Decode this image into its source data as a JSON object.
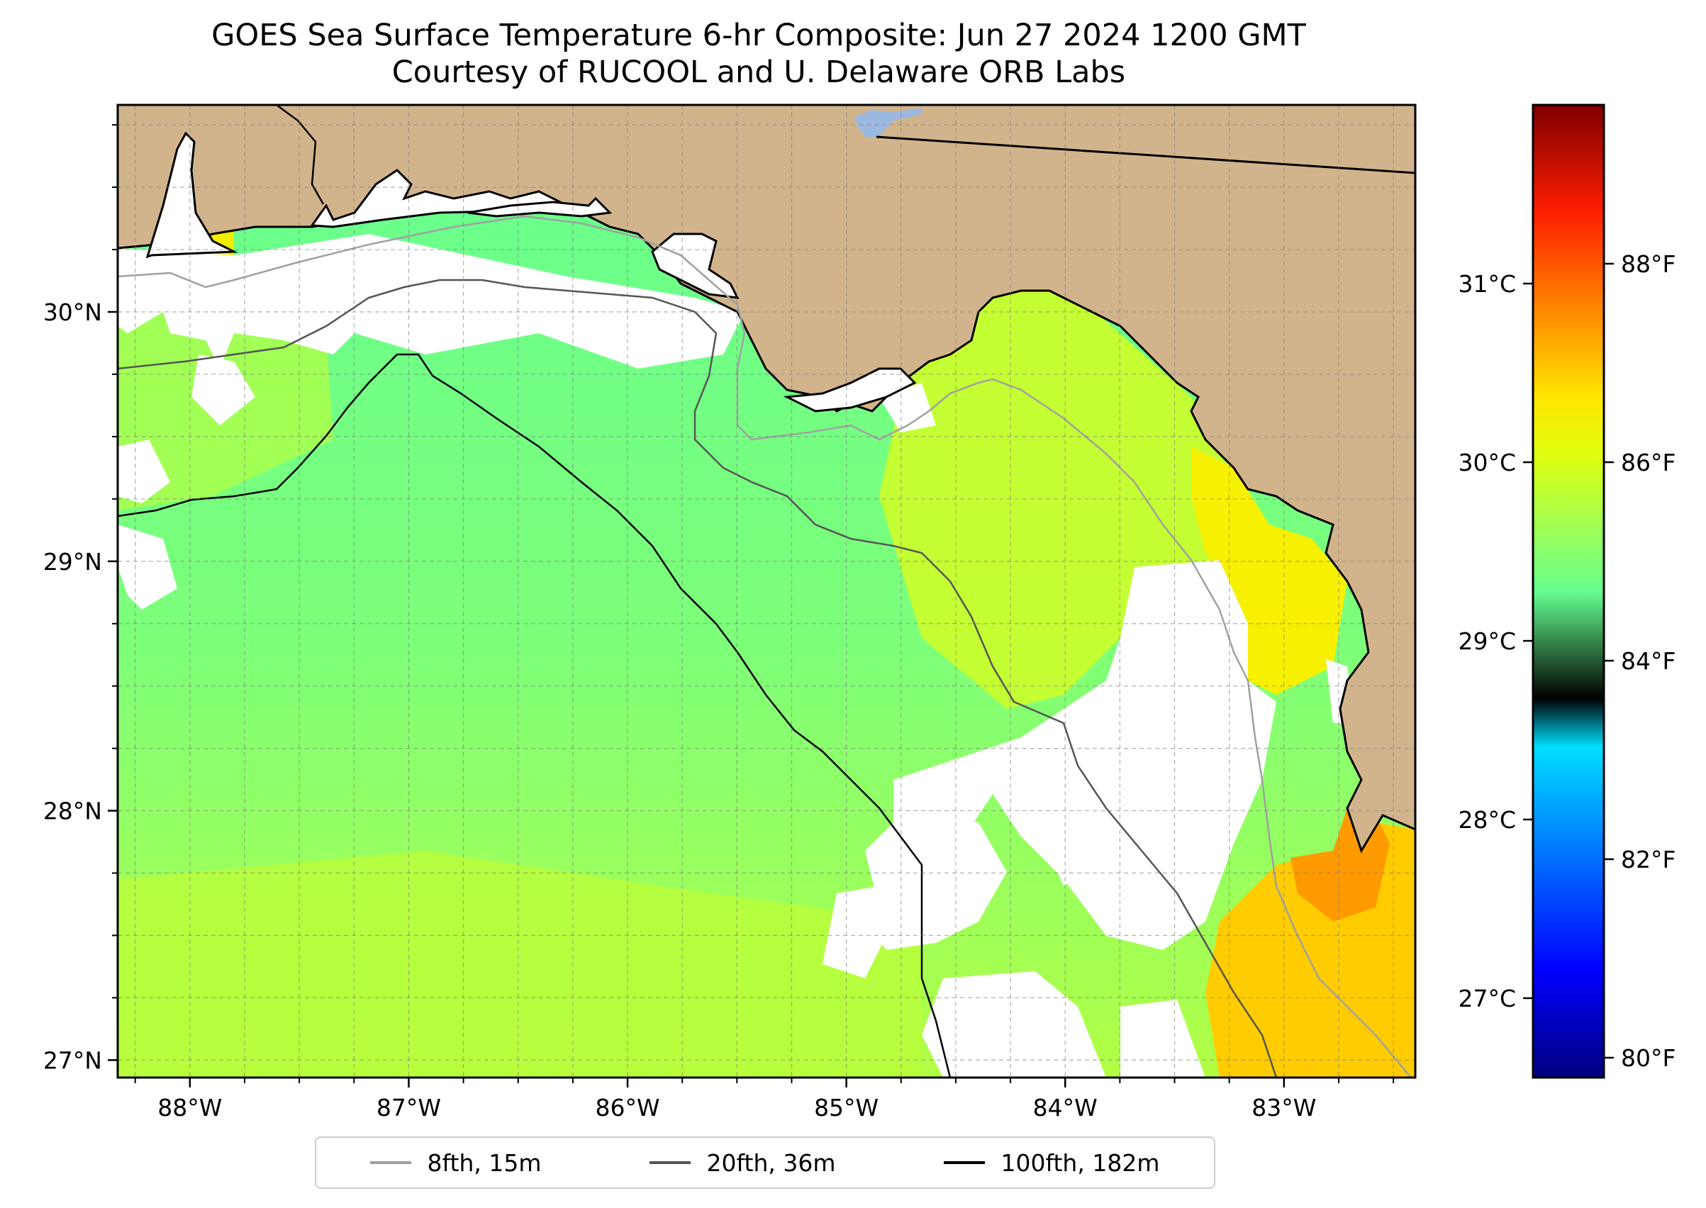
{
  "title": {
    "line1": "GOES Sea Surface Temperature 6-hr Composite: Jun 27 2024 1200 GMT",
    "line2": "Courtesy of RUCOOL and U. Delaware ORB Labs"
  },
  "map": {
    "extent": {
      "lon_min": -88.33,
      "lon_max": -82.4,
      "lat_min": 26.93,
      "lat_max": 30.83
    },
    "lon_ticks": [
      {
        "value": -88,
        "label": "88°W"
      },
      {
        "value": -87,
        "label": "87°W"
      },
      {
        "value": -86,
        "label": "86°W"
      },
      {
        "value": -85,
        "label": "85°W"
      },
      {
        "value": -84,
        "label": "84°W"
      },
      {
        "value": -83,
        "label": "83°W"
      }
    ],
    "lat_ticks": [
      {
        "value": 30,
        "label": "30°N"
      },
      {
        "value": 29,
        "label": "29°N"
      },
      {
        "value": 28,
        "label": "28°N"
      },
      {
        "value": 27,
        "label": "27°N"
      }
    ],
    "gridlines": "dashed, every 0.25°",
    "colors": {
      "land": "#d2b48c",
      "lake": "#9bb8e0",
      "no_data": "#ffffff",
      "water_dominant": "#66ff99",
      "water_warm": "#b2ff44"
    }
  },
  "colorbar": {
    "colormap": "jet",
    "celsius_ticks": [
      {
        "value": 31,
        "label": "31°C"
      },
      {
        "value": 30,
        "label": "30°C"
      },
      {
        "value": 29,
        "label": "29°C"
      },
      {
        "value": 28,
        "label": "28°C"
      },
      {
        "value": 27,
        "label": "27°C"
      }
    ],
    "fahrenheit_ticks": [
      {
        "value": 88,
        "label": "88°F"
      },
      {
        "value": 86,
        "label": "86°F"
      },
      {
        "value": 84,
        "label": "84°F"
      },
      {
        "value": 82,
        "label": "82°F"
      },
      {
        "value": 80,
        "label": "80°F"
      }
    ],
    "range_f": [
      79.8,
      89.6
    ]
  },
  "legend": {
    "entries": [
      {
        "label": "8fth, 15m",
        "color": "#a0a0a0"
      },
      {
        "label": "20fth, 36m",
        "color": "#555555"
      },
      {
        "label": "100fth, 182m",
        "color": "#000000"
      }
    ]
  }
}
